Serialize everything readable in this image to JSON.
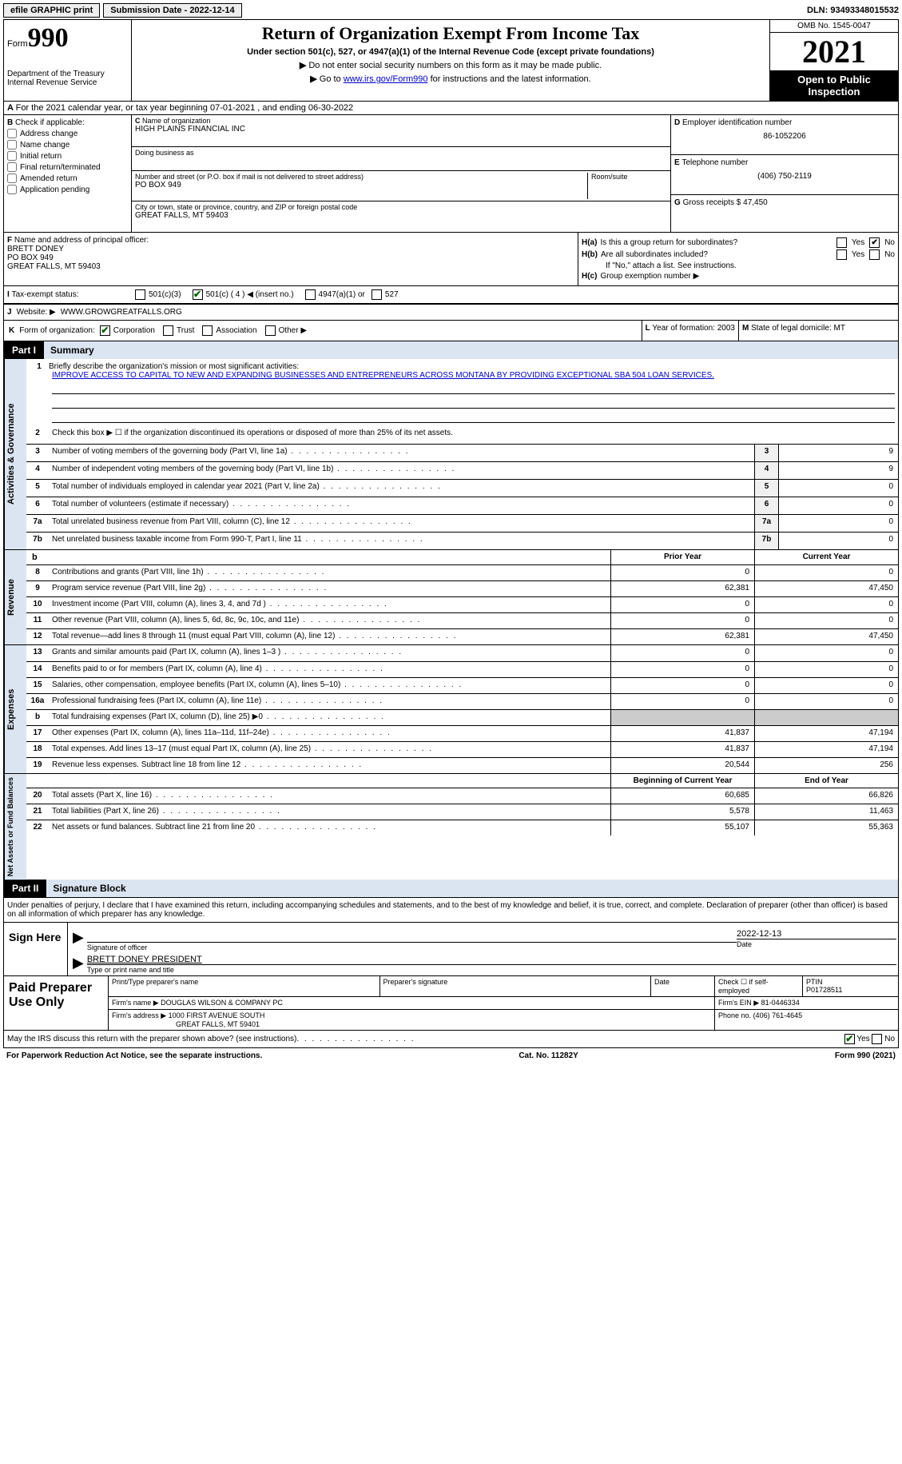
{
  "top": {
    "efile": "efile GRAPHIC print",
    "submission": "Submission Date - 2022-12-14",
    "dln": "DLN: 93493348015532"
  },
  "header": {
    "form_label": "Form",
    "form_num": "990",
    "dept": "Department of the Treasury Internal Revenue Service",
    "title": "Return of Organization Exempt From Income Tax",
    "subtitle": "Under section 501(c), 527, or 4947(a)(1) of the Internal Revenue Code (except private foundations)",
    "inst1": "Do not enter social security numbers on this form as it may be made public.",
    "inst2_pre": "Go to ",
    "inst2_link": "www.irs.gov/Form990",
    "inst2_post": " for instructions and the latest information.",
    "omb": "OMB No. 1545-0047",
    "year": "2021",
    "inspection": "Open to Public Inspection"
  },
  "row_a": {
    "text": "For the 2021 calendar year, or tax year beginning 07-01-2021    , and ending 06-30-2022"
  },
  "b": {
    "label": "Check if applicable:",
    "opts": [
      "Address change",
      "Name change",
      "Initial return",
      "Final return/terminated",
      "Amended return",
      "Application pending"
    ]
  },
  "c": {
    "name_label": "Name of organization",
    "name": "HIGH PLAINS FINANCIAL INC",
    "dba_label": "Doing business as",
    "dba": "",
    "addr_label": "Number and street (or P.O. box if mail is not delivered to street address)",
    "addr": "PO BOX 949",
    "room_label": "Room/suite",
    "city_label": "City or town, state or province, country, and ZIP or foreign postal code",
    "city": "GREAT FALLS, MT  59403"
  },
  "d": {
    "ein_label": "Employer identification number",
    "ein": "86-1052206",
    "tel_label": "Telephone number",
    "tel": "(406) 750-2119",
    "gross_label": "Gross receipts $",
    "gross": "47,450"
  },
  "f": {
    "label": "Name and address of principal officer:",
    "name": "BRETT DONEY",
    "addr1": "PO BOX 949",
    "addr2": "GREAT FALLS, MT  59403"
  },
  "h": {
    "a_label": "H(a)",
    "a_text": "Is this a group return for subordinates?",
    "b_label": "H(b)",
    "b_text": "Are all subordinates included?",
    "b_note": "If \"No,\" attach a list. See instructions.",
    "c_label": "H(c)",
    "c_text": "Group exemption number ▶"
  },
  "i": {
    "label": "Tax-exempt status:",
    "opt1": "501(c)(3)",
    "opt2": "501(c) ( 4 ) ◀ (insert no.)",
    "opt3": "4947(a)(1) or",
    "opt4": "527"
  },
  "j": {
    "label": "Website: ▶",
    "value": "WWW.GROWGREATFALLS.ORG"
  },
  "k": {
    "label": "Form of organization:",
    "opts": [
      "Corporation",
      "Trust",
      "Association",
      "Other ▶"
    ],
    "l_label": "Year of formation:",
    "l_val": "2003",
    "m_label": "State of legal domicile:",
    "m_val": "MT"
  },
  "part1": {
    "label": "Part I",
    "title": "Summary",
    "side1": "Activities & Governance",
    "side2": "Revenue",
    "side3": "Expenses",
    "side4": "Net Assets or Fund Balances",
    "l1_label": "Briefly describe the organization's mission or most significant activities:",
    "l1_text": "IMPROVE ACCESS TO CAPITAL TO NEW AND EXPANDING BUSINESSES AND ENTREPRENEURS ACROSS MONTANA BY PROVIDING EXCEPTIONAL SBA 504 LOAN SERVICES.",
    "l2": "Check this box ▶ ☐ if the organization discontinued its operations or disposed of more than 25% of its net assets.",
    "lines_simple": [
      {
        "n": "3",
        "t": "Number of voting members of the governing body (Part VI, line 1a)",
        "v": "9"
      },
      {
        "n": "4",
        "t": "Number of independent voting members of the governing body (Part VI, line 1b)",
        "v": "9"
      },
      {
        "n": "5",
        "t": "Total number of individuals employed in calendar year 2021 (Part V, line 2a)",
        "v": "0"
      },
      {
        "n": "6",
        "t": "Total number of volunteers (estimate if necessary)",
        "v": "0"
      },
      {
        "n": "7a",
        "t": "Total unrelated business revenue from Part VIII, column (C), line 12",
        "v": "0"
      },
      {
        "n": "7b",
        "t": "Net unrelated business taxable income from Form 990-T, Part I, line 11",
        "v": "0"
      }
    ],
    "col_header": {
      "prior": "Prior Year",
      "current": "Current Year"
    },
    "revenue": [
      {
        "n": "8",
        "t": "Contributions and grants (Part VIII, line 1h)",
        "p": "0",
        "c": "0"
      },
      {
        "n": "9",
        "t": "Program service revenue (Part VIII, line 2g)",
        "p": "62,381",
        "c": "47,450"
      },
      {
        "n": "10",
        "t": "Investment income (Part VIII, column (A), lines 3, 4, and 7d )",
        "p": "0",
        "c": "0"
      },
      {
        "n": "11",
        "t": "Other revenue (Part VIII, column (A), lines 5, 6d, 8c, 9c, 10c, and 11e)",
        "p": "0",
        "c": "0"
      },
      {
        "n": "12",
        "t": "Total revenue—add lines 8 through 11 (must equal Part VIII, column (A), line 12)",
        "p": "62,381",
        "c": "47,450"
      }
    ],
    "expenses": [
      {
        "n": "13",
        "t": "Grants and similar amounts paid (Part IX, column (A), lines 1–3 )",
        "p": "0",
        "c": "0"
      },
      {
        "n": "14",
        "t": "Benefits paid to or for members (Part IX, column (A), line 4)",
        "p": "0",
        "c": "0"
      },
      {
        "n": "15",
        "t": "Salaries, other compensation, employee benefits (Part IX, column (A), lines 5–10)",
        "p": "0",
        "c": "0"
      },
      {
        "n": "16a",
        "t": "Professional fundraising fees (Part IX, column (A), line 11e)",
        "p": "0",
        "c": "0"
      },
      {
        "n": "b",
        "t": "Total fundraising expenses (Part IX, column (D), line 25) ▶0",
        "p": "SHADE",
        "c": "SHADE"
      },
      {
        "n": "17",
        "t": "Other expenses (Part IX, column (A), lines 11a–11d, 11f–24e)",
        "p": "41,837",
        "c": "47,194"
      },
      {
        "n": "18",
        "t": "Total expenses. Add lines 13–17 (must equal Part IX, column (A), line 25)",
        "p": "41,837",
        "c": "47,194"
      },
      {
        "n": "19",
        "t": "Revenue less expenses. Subtract line 18 from line 12",
        "p": "20,544",
        "c": "256"
      }
    ],
    "col_header2": {
      "prior": "Beginning of Current Year",
      "current": "End of Year"
    },
    "net": [
      {
        "n": "20",
        "t": "Total assets (Part X, line 16)",
        "p": "60,685",
        "c": "66,826"
      },
      {
        "n": "21",
        "t": "Total liabilities (Part X, line 26)",
        "p": "5,578",
        "c": "11,463"
      },
      {
        "n": "22",
        "t": "Net assets or fund balances. Subtract line 21 from line 20",
        "p": "55,107",
        "c": "55,363"
      }
    ]
  },
  "part2": {
    "label": "Part II",
    "title": "Signature Block",
    "decl": "Under penalties of perjury, I declare that I have examined this return, including accompanying schedules and statements, and to the best of my knowledge and belief, it is true, correct, and complete. Declaration of preparer (other than officer) is based on all information of which preparer has any knowledge.",
    "sign_here": "Sign Here",
    "sig_officer": "Signature of officer",
    "sig_date": "2022-12-13",
    "date_label": "Date",
    "name_title": "BRETT DONEY PRESIDENT",
    "name_caption": "Type or print name and title",
    "paid": "Paid Preparer Use Only",
    "prep_name_label": "Print/Type preparer's name",
    "prep_sig_label": "Preparer's signature",
    "prep_date_label": "Date",
    "prep_check": "Check ☐ if self-employed",
    "ptin_label": "PTIN",
    "ptin": "P01728511",
    "firm_name_label": "Firm's name    ▶",
    "firm_name": "DOUGLAS WILSON & COMPANY PC",
    "firm_ein_label": "Firm's EIN ▶",
    "firm_ein": "81-0446334",
    "firm_addr_label": "Firm's address ▶",
    "firm_addr1": "1000 FIRST AVENUE SOUTH",
    "firm_addr2": "GREAT FALLS, MT  59401",
    "phone_label": "Phone no.",
    "phone": "(406) 761-4645",
    "discuss": "May the IRS discuss this return with the preparer shown above? (see instructions)"
  },
  "footer": {
    "left": "For Paperwork Reduction Act Notice, see the separate instructions.",
    "mid": "Cat. No. 11282Y",
    "right": "Form 990 (2021)"
  }
}
